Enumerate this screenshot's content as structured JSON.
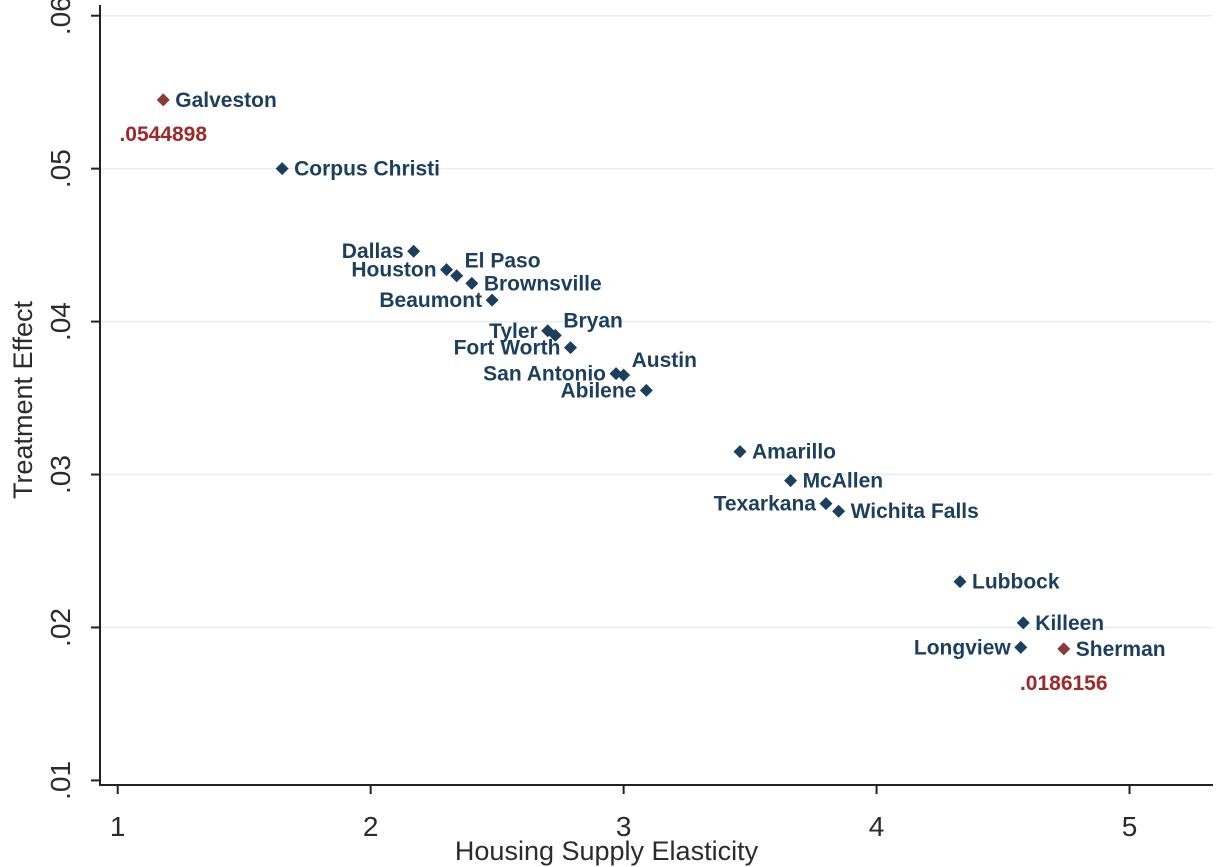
{
  "chart_data": {
    "type": "scatter",
    "xlabel": "Housing Supply Elasticity",
    "ylabel": "Treatment Effect",
    "xlim": [
      0.93,
      5.33
    ],
    "ylim": [
      0.0097,
      0.0607
    ],
    "xticks": [
      1,
      2,
      3,
      4,
      5
    ],
    "xtick_labels": [
      "1",
      "2",
      "3",
      "4",
      "5"
    ],
    "yticks": [
      0.01,
      0.02,
      0.03,
      0.04,
      0.05,
      0.06
    ],
    "ytick_labels": [
      ".01",
      ".02",
      ".03",
      ".04",
      ".05",
      ".06"
    ],
    "grid": "horizontal",
    "colors": {
      "normal": "#1c3f5e",
      "highlight": "#8b3a3a",
      "label_text": "#1c3f5e",
      "value_text": "#a02828"
    },
    "points": [
      {
        "name": "Galveston",
        "x": 1.18,
        "y": 0.0545,
        "highlight": true,
        "label_pos": "right"
      },
      {
        "name": "Corpus Christi",
        "x": 1.65,
        "y": 0.05,
        "highlight": false,
        "label_pos": "right"
      },
      {
        "name": "Dallas",
        "x": 2.17,
        "y": 0.0446,
        "highlight": false,
        "label_pos": "left"
      },
      {
        "name": "Houston",
        "x": 2.3,
        "y": 0.0434,
        "highlight": false,
        "label_pos": "left"
      },
      {
        "name": "El Paso",
        "x": 2.34,
        "y": 0.043,
        "highlight": false,
        "label_pos": "upright"
      },
      {
        "name": "Brownsville",
        "x": 2.4,
        "y": 0.0425,
        "highlight": false,
        "label_pos": "right"
      },
      {
        "name": "Beaumont",
        "x": 2.48,
        "y": 0.0414,
        "highlight": false,
        "label_pos": "left"
      },
      {
        "name": "Tyler",
        "x": 2.7,
        "y": 0.0394,
        "highlight": false,
        "label_pos": "left"
      },
      {
        "name": "Bryan",
        "x": 2.73,
        "y": 0.0391,
        "highlight": false,
        "label_pos": "upright"
      },
      {
        "name": "Fort Worth",
        "x": 2.79,
        "y": 0.0383,
        "highlight": false,
        "label_pos": "left"
      },
      {
        "name": "Austin",
        "x": 3.0,
        "y": 0.0365,
        "highlight": false,
        "label_pos": "upright"
      },
      {
        "name": "San Antonio",
        "x": 2.97,
        "y": 0.0366,
        "highlight": false,
        "label_pos": "left"
      },
      {
        "name": "Abilene",
        "x": 3.09,
        "y": 0.0355,
        "highlight": false,
        "label_pos": "left"
      },
      {
        "name": "Amarillo",
        "x": 3.46,
        "y": 0.0315,
        "highlight": false,
        "label_pos": "right"
      },
      {
        "name": "McAllen",
        "x": 3.66,
        "y": 0.0296,
        "highlight": false,
        "label_pos": "right"
      },
      {
        "name": "Texarkana",
        "x": 3.8,
        "y": 0.0281,
        "highlight": false,
        "label_pos": "left"
      },
      {
        "name": "Wichita Falls",
        "x": 3.85,
        "y": 0.0276,
        "highlight": false,
        "label_pos": "right"
      },
      {
        "name": "Lubbock",
        "x": 4.33,
        "y": 0.023,
        "highlight": false,
        "label_pos": "right"
      },
      {
        "name": "Killeen",
        "x": 4.58,
        "y": 0.0203,
        "highlight": false,
        "label_pos": "right"
      },
      {
        "name": "Longview",
        "x": 4.57,
        "y": 0.0187,
        "highlight": false,
        "label_pos": "left"
      },
      {
        "name": "Sherman",
        "x": 4.74,
        "y": 0.0186,
        "highlight": true,
        "label_pos": "right"
      }
    ],
    "annotations": [
      {
        "text": ".0544898",
        "x": 1.18,
        "y": 0.0545
      },
      {
        "text": ".0186156",
        "x": 4.74,
        "y": 0.0186
      }
    ]
  }
}
